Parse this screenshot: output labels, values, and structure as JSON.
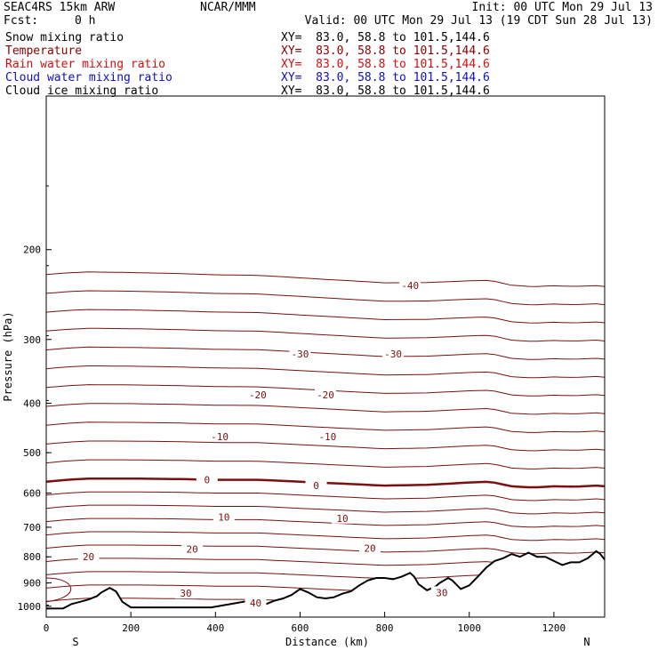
{
  "header": {
    "model": "SEAC4RS 15km ARW",
    "center": "NCAR/MMM",
    "init": "Init: 00 UTC Mon 29 Jul 13",
    "fcst_label": "Fcst:",
    "fcst_value": "0 h",
    "valid": "Valid: 00 UTC Mon 29 Jul 13 (19 CDT Sun 28 Jul 13)"
  },
  "fields": [
    {
      "name": "Snow mixing ratio",
      "xy": "XY=  83.0, 58.8 to 101.5,144.6",
      "color": "#000000"
    },
    {
      "name": "Temperature",
      "xy": "XY=  83.0, 58.8 to 101.5,144.6",
      "color": "#8b0000"
    },
    {
      "name": "Rain water mixing ratio",
      "xy": "XY=  83.0, 58.8 to 101.5,144.6",
      "color": "#d01010"
    },
    {
      "name": "Cloud water mixing ratio",
      "xy": "XY=  83.0, 58.8 to 101.5,144.6",
      "color": "#1010c0"
    },
    {
      "name": "Cloud ice mixing ratio",
      "xy": "XY=  83.0, 58.8 to 101.5,144.6",
      "color": "#000000"
    }
  ],
  "chart_data": {
    "type": "line",
    "title": "",
    "xlabel": "Distance (km)",
    "ylabel": "Pressure (hPa)",
    "xlim": [
      0,
      1320
    ],
    "ylim": [
      1050,
      100
    ],
    "y_scale": "log",
    "x_ticks": [
      0,
      200,
      400,
      600,
      800,
      1000,
      1200
    ],
    "y_ticks": [
      200,
      300,
      400,
      500,
      600,
      700,
      800,
      900,
      1000
    ],
    "endpoints": {
      "left": "S",
      "right": "N"
    },
    "contour_interval_c": 5,
    "contour_color": "#7a1010",
    "isotherm_labels": [
      {
        "label": "-40",
        "x": 860,
        "p": 235
      },
      {
        "label": "-30",
        "x": 600,
        "p": 320
      },
      {
        "label": "-30",
        "x": 820,
        "p": 320
      },
      {
        "label": "-20",
        "x": 500,
        "p": 385
      },
      {
        "label": "-20",
        "x": 660,
        "p": 385
      },
      {
        "label": "-10",
        "x": 410,
        "p": 465
      },
      {
        "label": "-10",
        "x": 665,
        "p": 465
      },
      {
        "label": "0",
        "x": 380,
        "p": 565
      },
      {
        "label": "0",
        "x": 638,
        "p": 580
      },
      {
        "label": "10",
        "x": 420,
        "p": 668
      },
      {
        "label": "10",
        "x": 700,
        "p": 672
      },
      {
        "label": "20",
        "x": 345,
        "p": 773
      },
      {
        "label": "20",
        "x": 765,
        "p": 770
      },
      {
        "label": "20",
        "x": 100,
        "p": 800
      },
      {
        "label": "30",
        "x": 330,
        "p": 943
      },
      {
        "label": "30",
        "x": 935,
        "p": 940
      },
      {
        "label": "40",
        "x": 495,
        "p": 985
      }
    ],
    "zero_isotherm": {
      "x": [
        0,
        50,
        100,
        200,
        300,
        400,
        500,
        600,
        700,
        800,
        900,
        1000,
        1050,
        1100,
        1150,
        1200,
        1250,
        1300,
        1320
      ],
      "p": [
        570,
        565,
        562,
        562,
        563,
        565,
        565,
        570,
        575,
        580,
        578,
        572,
        570,
        582,
        585,
        582,
        583,
        580,
        582
      ]
    },
    "terrain": {
      "name": "",
      "x": [
        0,
        40,
        60,
        80,
        100,
        120,
        130,
        150,
        165,
        180,
        200,
        250,
        300,
        350,
        390,
        420,
        450,
        480,
        500,
        520,
        540,
        560,
        580,
        600,
        620,
        640,
        660,
        680,
        700,
        720,
        740,
        760,
        780,
        800,
        820,
        840,
        860,
        870,
        880,
        900,
        920,
        930,
        950,
        960,
        980,
        1000,
        1020,
        1040,
        1060,
        1080,
        1100,
        1120,
        1140,
        1160,
        1180,
        1200,
        1220,
        1240,
        1260,
        1280,
        1300,
        1310,
        1320
      ],
      "p": [
        1010,
        1010,
        990,
        980,
        970,
        955,
        940,
        920,
        935,
        980,
        1005,
        1005,
        1005,
        1005,
        1005,
        995,
        985,
        975,
        980,
        990,
        975,
        965,
        950,
        925,
        940,
        960,
        965,
        960,
        945,
        935,
        910,
        890,
        880,
        880,
        885,
        875,
        860,
        875,
        905,
        930,
        915,
        900,
        880,
        890,
        925,
        910,
        875,
        840,
        815,
        805,
        790,
        800,
        785,
        800,
        800,
        815,
        830,
        820,
        820,
        805,
        780,
        790,
        810
      ]
    }
  }
}
